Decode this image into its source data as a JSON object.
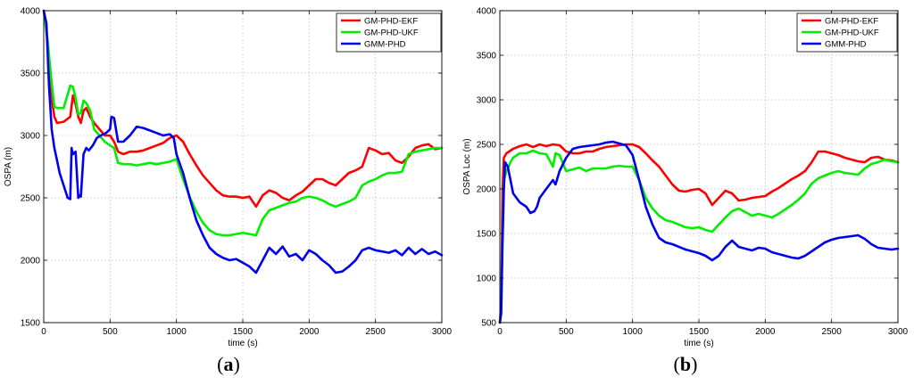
{
  "colors": {
    "GM-PHD-EKF": "#ff0000",
    "GM-PHD-UKF": "#00ee00",
    "GMM-PHD": "#0000ee",
    "grid": "#bdbdbd",
    "axis": "#000000"
  },
  "chart_data": [
    {
      "id": "a",
      "caption": {
        "open": "(",
        "letter": "a",
        "close": ")"
      },
      "type": "line",
      "title": "",
      "xlabel": "time (s)",
      "ylabel": "OSPA (m)",
      "xlim": [
        0,
        3000
      ],
      "ylim": [
        1500,
        4000
      ],
      "xticks": [
        0,
        500,
        1000,
        1500,
        2000,
        2500,
        3000
      ],
      "yticks": [
        1500,
        2000,
        2500,
        3000,
        3500,
        4000
      ],
      "grid": true,
      "legend_position": "top-right",
      "series": [
        {
          "name": "GM-PHD-EKF",
          "x": [
            0,
            30,
            60,
            80,
            100,
            150,
            200,
            220,
            240,
            260,
            280,
            300,
            320,
            350,
            380,
            420,
            460,
            500,
            530,
            560,
            600,
            650,
            700,
            750,
            800,
            850,
            900,
            950,
            1000,
            1050,
            1100,
            1150,
            1200,
            1250,
            1300,
            1350,
            1400,
            1450,
            1500,
            1550,
            1600,
            1650,
            1700,
            1750,
            1800,
            1850,
            1900,
            1950,
            2000,
            2050,
            2100,
            2150,
            2200,
            2250,
            2300,
            2350,
            2400,
            2450,
            2500,
            2550,
            2600,
            2650,
            2700,
            2750,
            2800,
            2850,
            2900,
            2950,
            3000
          ],
          "y": [
            4000,
            3750,
            3300,
            3150,
            3100,
            3110,
            3150,
            3320,
            3250,
            3150,
            3100,
            3200,
            3220,
            3150,
            3100,
            3050,
            3000,
            3000,
            2950,
            2870,
            2850,
            2870,
            2870,
            2880,
            2900,
            2920,
            2940,
            2980,
            3000,
            2950,
            2850,
            2760,
            2680,
            2620,
            2560,
            2520,
            2510,
            2510,
            2500,
            2510,
            2430,
            2520,
            2560,
            2540,
            2500,
            2480,
            2520,
            2550,
            2600,
            2650,
            2650,
            2620,
            2600,
            2650,
            2700,
            2720,
            2750,
            2900,
            2880,
            2850,
            2860,
            2800,
            2780,
            2830,
            2900,
            2920,
            2930,
            2890,
            2900
          ]
        },
        {
          "name": "GM-PHD-UKF",
          "x": [
            0,
            30,
            60,
            80,
            100,
            150,
            200,
            220,
            240,
            260,
            280,
            300,
            320,
            350,
            380,
            420,
            460,
            500,
            530,
            560,
            600,
            650,
            700,
            750,
            800,
            850,
            900,
            950,
            1000,
            1050,
            1100,
            1150,
            1200,
            1250,
            1300,
            1350,
            1400,
            1450,
            1500,
            1550,
            1600,
            1650,
            1700,
            1750,
            1800,
            1850,
            1900,
            1950,
            2000,
            2050,
            2100,
            2150,
            2200,
            2250,
            2300,
            2350,
            2400,
            2450,
            2500,
            2550,
            2600,
            2650,
            2700,
            2750,
            2800,
            2850,
            2900,
            2950,
            3000
          ],
          "y": [
            4000,
            3750,
            3420,
            3230,
            3220,
            3220,
            3400,
            3390,
            3300,
            3170,
            3180,
            3280,
            3260,
            3200,
            3050,
            3000,
            2950,
            2920,
            2900,
            2780,
            2770,
            2770,
            2760,
            2770,
            2780,
            2770,
            2780,
            2790,
            2810,
            2650,
            2510,
            2390,
            2300,
            2240,
            2210,
            2200,
            2200,
            2210,
            2220,
            2210,
            2200,
            2330,
            2400,
            2420,
            2440,
            2460,
            2470,
            2500,
            2510,
            2500,
            2480,
            2450,
            2430,
            2450,
            2470,
            2500,
            2600,
            2630,
            2650,
            2680,
            2700,
            2700,
            2710,
            2850,
            2870,
            2880,
            2890,
            2900,
            2900
          ]
        },
        {
          "name": "GMM-PHD",
          "x": [
            0,
            20,
            40,
            60,
            80,
            100,
            120,
            150,
            180,
            200,
            210,
            220,
            240,
            260,
            270,
            280,
            300,
            320,
            340,
            370,
            400,
            430,
            470,
            500,
            510,
            530,
            560,
            600,
            650,
            700,
            750,
            800,
            850,
            900,
            950,
            980,
            1000,
            1050,
            1100,
            1150,
            1200,
            1250,
            1300,
            1350,
            1400,
            1450,
            1500,
            1550,
            1600,
            1650,
            1700,
            1750,
            1800,
            1850,
            1900,
            1950,
            2000,
            2050,
            2100,
            2150,
            2200,
            2250,
            2300,
            2350,
            2400,
            2450,
            2500,
            2550,
            2600,
            2650,
            2700,
            2750,
            2800,
            2850,
            2900,
            2950,
            3000
          ],
          "y": [
            4000,
            3900,
            3400,
            3050,
            2900,
            2800,
            2700,
            2600,
            2500,
            2490,
            2900,
            2850,
            2870,
            2500,
            2520,
            2510,
            2850,
            2900,
            2880,
            2920,
            2980,
            3000,
            3020,
            3050,
            3150,
            3140,
            2950,
            2950,
            3000,
            3070,
            3060,
            3040,
            3020,
            3000,
            3010,
            2980,
            2850,
            2700,
            2500,
            2320,
            2200,
            2100,
            2050,
            2020,
            2000,
            2010,
            1980,
            1950,
            1900,
            2000,
            2100,
            2050,
            2110,
            2030,
            2050,
            2000,
            2080,
            2050,
            2000,
            1960,
            1900,
            1910,
            1950,
            2000,
            2080,
            2100,
            2080,
            2070,
            2060,
            2080,
            2040,
            2100,
            2050,
            2090,
            2050,
            2070,
            2040
          ]
        }
      ]
    },
    {
      "id": "b",
      "caption": {
        "open": "(",
        "letter": "b",
        "close": ")"
      },
      "type": "line",
      "title": "",
      "xlabel": "time (s)",
      "ylabel": "OSPA Loc (m)",
      "xlim": [
        0,
        3000
      ],
      "ylim": [
        500,
        4000
      ],
      "xticks": [
        0,
        500,
        1000,
        1500,
        2000,
        2500,
        3000
      ],
      "yticks": [
        500,
        1000,
        1500,
        2000,
        2500,
        3000,
        3500,
        4000
      ],
      "grid": true,
      "legend_position": "top-right",
      "series": [
        {
          "name": "GM-PHD-EKF",
          "x": [
            0,
            10,
            20,
            30,
            50,
            100,
            150,
            200,
            250,
            300,
            350,
            400,
            450,
            500,
            550,
            600,
            650,
            700,
            750,
            800,
            850,
            900,
            950,
            1000,
            1050,
            1100,
            1150,
            1200,
            1250,
            1300,
            1350,
            1400,
            1450,
            1500,
            1550,
            1600,
            1650,
            1700,
            1750,
            1800,
            1850,
            1900,
            1950,
            2000,
            2050,
            2100,
            2150,
            2200,
            2250,
            2300,
            2350,
            2400,
            2450,
            2500,
            2550,
            2600,
            2650,
            2700,
            2750,
            2800,
            2850,
            2900,
            2950,
            3000
          ],
          "y": [
            500,
            700,
            2000,
            2350,
            2400,
            2450,
            2480,
            2500,
            2470,
            2500,
            2480,
            2500,
            2490,
            2420,
            2400,
            2400,
            2420,
            2420,
            2450,
            2470,
            2480,
            2490,
            2500,
            2500,
            2470,
            2400,
            2320,
            2250,
            2150,
            2050,
            1980,
            1970,
            1990,
            2000,
            1950,
            1820,
            1900,
            1980,
            1950,
            1870,
            1880,
            1900,
            1910,
            1920,
            1970,
            2010,
            2060,
            2110,
            2150,
            2200,
            2300,
            2420,
            2420,
            2400,
            2380,
            2350,
            2330,
            2310,
            2300,
            2350,
            2360,
            2330,
            2320,
            2300
          ]
        },
        {
          "name": "GM-PHD-UKF",
          "x": [
            0,
            10,
            20,
            30,
            50,
            80,
            100,
            150,
            200,
            250,
            300,
            350,
            400,
            420,
            450,
            500,
            550,
            600,
            650,
            700,
            750,
            800,
            850,
            900,
            950,
            1000,
            1050,
            1100,
            1150,
            1200,
            1250,
            1300,
            1350,
            1400,
            1450,
            1500,
            1550,
            1600,
            1650,
            1700,
            1750,
            1800,
            1850,
            1900,
            1950,
            2000,
            2050,
            2100,
            2150,
            2200,
            2250,
            2300,
            2350,
            2400,
            2450,
            2500,
            2550,
            2600,
            2650,
            2700,
            2750,
            2800,
            2850,
            2900,
            2950,
            3000
          ],
          "y": [
            500,
            700,
            1500,
            2100,
            2200,
            2300,
            2350,
            2400,
            2400,
            2430,
            2400,
            2390,
            2250,
            2400,
            2380,
            2200,
            2220,
            2240,
            2200,
            2230,
            2230,
            2230,
            2250,
            2260,
            2250,
            2250,
            2100,
            1900,
            1780,
            1700,
            1650,
            1630,
            1600,
            1570,
            1560,
            1570,
            1540,
            1520,
            1600,
            1680,
            1750,
            1780,
            1740,
            1700,
            1720,
            1700,
            1680,
            1720,
            1770,
            1820,
            1880,
            1950,
            2060,
            2120,
            2150,
            2180,
            2200,
            2180,
            2170,
            2160,
            2230,
            2280,
            2300,
            2330,
            2310,
            2300
          ]
        },
        {
          "name": "GMM-PHD",
          "x": [
            0,
            10,
            20,
            30,
            40,
            60,
            80,
            100,
            150,
            200,
            230,
            260,
            280,
            300,
            350,
            400,
            420,
            450,
            500,
            550,
            600,
            650,
            700,
            750,
            800,
            850,
            900,
            950,
            1000,
            1050,
            1100,
            1150,
            1200,
            1250,
            1300,
            1350,
            1400,
            1450,
            1500,
            1550,
            1600,
            1650,
            1700,
            1750,
            1800,
            1850,
            1900,
            1950,
            2000,
            2050,
            2100,
            2150,
            2200,
            2250,
            2300,
            2350,
            2400,
            2450,
            2500,
            2550,
            2600,
            2650,
            2700,
            2750,
            2800,
            2850,
            2900,
            2950,
            3000
          ],
          "y": [
            500,
            600,
            1400,
            2000,
            2300,
            2250,
            2100,
            1950,
            1850,
            1800,
            1730,
            1750,
            1800,
            1900,
            2000,
            2100,
            2050,
            2200,
            2350,
            2450,
            2470,
            2480,
            2490,
            2500,
            2520,
            2530,
            2510,
            2490,
            2380,
            2100,
            1800,
            1600,
            1450,
            1400,
            1380,
            1350,
            1320,
            1300,
            1280,
            1250,
            1200,
            1250,
            1350,
            1420,
            1350,
            1330,
            1310,
            1340,
            1330,
            1290,
            1270,
            1250,
            1230,
            1220,
            1250,
            1300,
            1350,
            1400,
            1430,
            1450,
            1460,
            1470,
            1480,
            1440,
            1380,
            1340,
            1330,
            1320,
            1330
          ]
        }
      ]
    }
  ]
}
